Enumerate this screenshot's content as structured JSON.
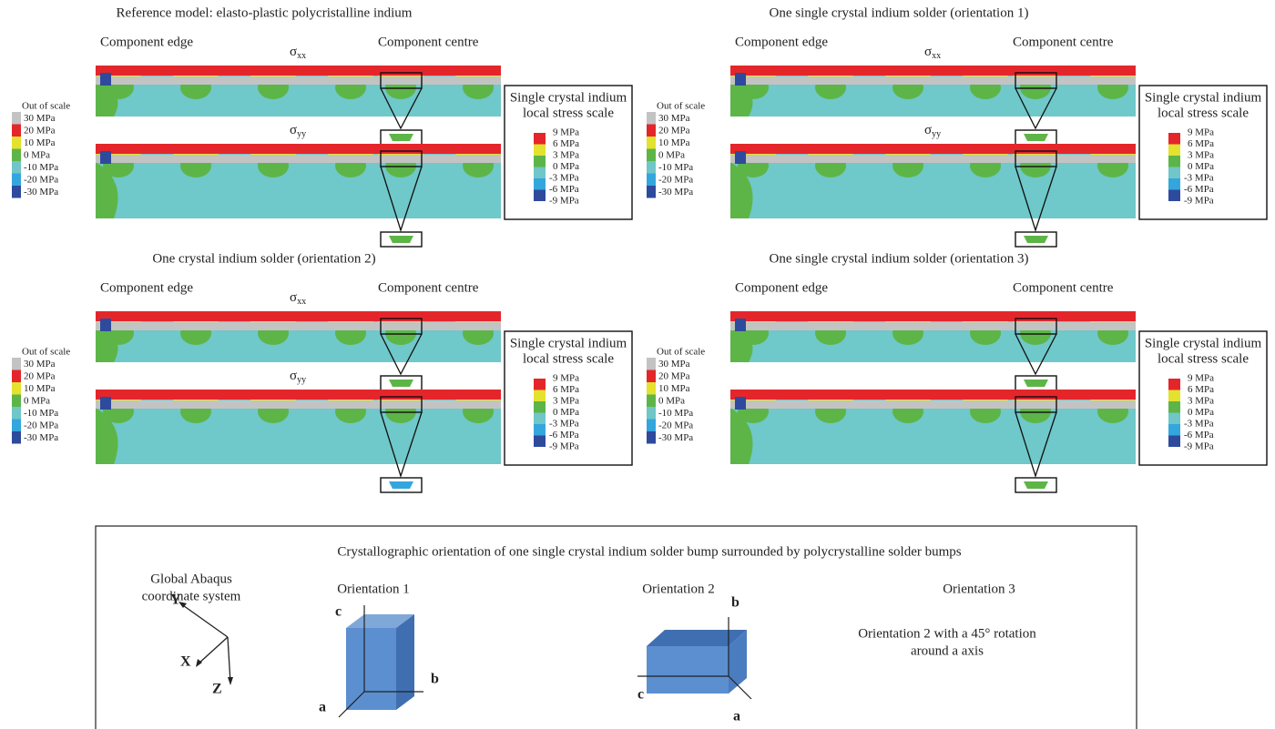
{
  "panels": [
    {
      "title": "Reference model: elasto-plastic polycristalline indium",
      "edge_label": "Component edge",
      "centre_label": "Component centre",
      "sigma_top": {
        "symbol": "σ",
        "subscript": "xx"
      },
      "sigma_bottom": {
        "symbol": "σ",
        "subscript": "yy"
      },
      "global_scale": {
        "labels": [
          "Out of scale",
          "30 MPa",
          "20 MPa",
          "10 MPa",
          "0 MPa",
          "-10 MPa",
          "-20 MPa",
          "-30 MPa"
        ],
        "colors": [
          "#c3c3c3",
          "#e4262b",
          "#e3e22e",
          "#5db548",
          "#70c6c8",
          "#34a6de",
          "#2e4a9c"
        ]
      },
      "local_scale": {
        "title_lines": [
          "Single crystal indium",
          "local stress scale"
        ],
        "labels": [
          "9 MPa",
          "6 MPa",
          "3 MPa",
          "0 MPa",
          "-3 MPa",
          "-6 MPa",
          "-9 MPa"
        ],
        "colors": [
          "#e4262b",
          "#e3e22e",
          "#5db548",
          "#70c6c8",
          "#34a6de",
          "#2e4a9c"
        ]
      }
    },
    {
      "title": "One single crystal indium solder (orientation 1)",
      "edge_label": "Component edge",
      "centre_label": "Component centre",
      "sigma_top": {
        "symbol": "σ",
        "subscript": "xx"
      },
      "sigma_bottom": {
        "symbol": "σ",
        "subscript": "yy"
      },
      "global_scale": {
        "labels": [
          "Out of scale",
          "30 MPa",
          "20 MPa",
          "10 MPa",
          "0 MPa",
          "-10 MPa",
          "-20 MPa",
          "-30 MPa"
        ],
        "colors": [
          "#c3c3c3",
          "#e4262b",
          "#e3e22e",
          "#5db548",
          "#70c6c8",
          "#34a6de",
          "#2e4a9c"
        ]
      },
      "local_scale": {
        "title_lines": [
          "Single crystal indium",
          "local stress scale"
        ],
        "labels": [
          "9 MPa",
          "6 MPa",
          "3 MPa",
          "0 MPa",
          "-3 MPa",
          "-6 MPa",
          "-9 MPa"
        ],
        "colors": [
          "#e4262b",
          "#e3e22e",
          "#5db548",
          "#70c6c8",
          "#34a6de",
          "#2e4a9c"
        ]
      }
    },
    {
      "title": "One crystal indium solder (orientation 2)",
      "edge_label": "Component edge",
      "centre_label": "Component centre",
      "sigma_top": {
        "symbol": "σ",
        "subscript": "xx"
      },
      "sigma_bottom": {
        "symbol": "σ",
        "subscript": "yy"
      },
      "global_scale": {
        "labels": [
          "Out of scale",
          "30 MPa",
          "20 MPa",
          "10 MPa",
          "0 MPa",
          "-10 MPa",
          "-20 MPa",
          "-30 MPa"
        ],
        "colors": [
          "#c3c3c3",
          "#e4262b",
          "#e3e22e",
          "#5db548",
          "#70c6c8",
          "#34a6de",
          "#2e4a9c"
        ]
      },
      "local_scale": {
        "title_lines": [
          "Single crystal indium",
          "local stress scale"
        ],
        "labels": [
          "9 MPa",
          "6 MPa",
          "3 MPa",
          "0 MPa",
          "-3 MPa",
          "-6 MPa",
          "-9 MPa"
        ],
        "colors": [
          "#e4262b",
          "#e3e22e",
          "#5db548",
          "#70c6c8",
          "#34a6de",
          "#2e4a9c"
        ]
      }
    },
    {
      "title": "One single crystal indium solder (orientation 3)",
      "edge_label": "Component edge",
      "centre_label": "Component centre",
      "global_scale": {
        "labels": [
          "Out of scale",
          "30 MPa",
          "20 MPa",
          "10 MPa",
          "0 MPa",
          "-10 MPa",
          "-20 MPa",
          "-30 MPa"
        ],
        "colors": [
          "#c3c3c3",
          "#e4262b",
          "#e3e22e",
          "#5db548",
          "#70c6c8",
          "#34a6de",
          "#2e4a9c"
        ]
      },
      "local_scale": {
        "title_lines": [
          "Single crystal indium",
          "local stress scale"
        ],
        "labels": [
          "9 MPa",
          "6 MPa",
          "3 MPa",
          "0 MPa",
          "-3 MPa",
          "-6 MPa",
          "-9 MPa"
        ],
        "colors": [
          "#e4262b",
          "#e3e22e",
          "#5db548",
          "#70c6c8",
          "#34a6de",
          "#2e4a9c"
        ]
      }
    }
  ],
  "orientation_box": {
    "title": "Crystallographic orientation of one single crystal indium solder bump surrounded by polycrystalline solder bumps",
    "global_system": {
      "lines": [
        "Global Abaqus",
        "coordinate system"
      ],
      "axes": [
        "Y",
        "X",
        "Z"
      ]
    },
    "orientations": [
      {
        "title": "Orientation 1",
        "axes": [
          "c",
          "b",
          "a"
        ]
      },
      {
        "title": "Orientation 2",
        "axes": [
          "b",
          "c",
          "a"
        ]
      },
      {
        "title": "Orientation 3",
        "description_lines": [
          "Orientation 2 with a 45° rotation",
          "around a axis"
        ]
      }
    ]
  }
}
